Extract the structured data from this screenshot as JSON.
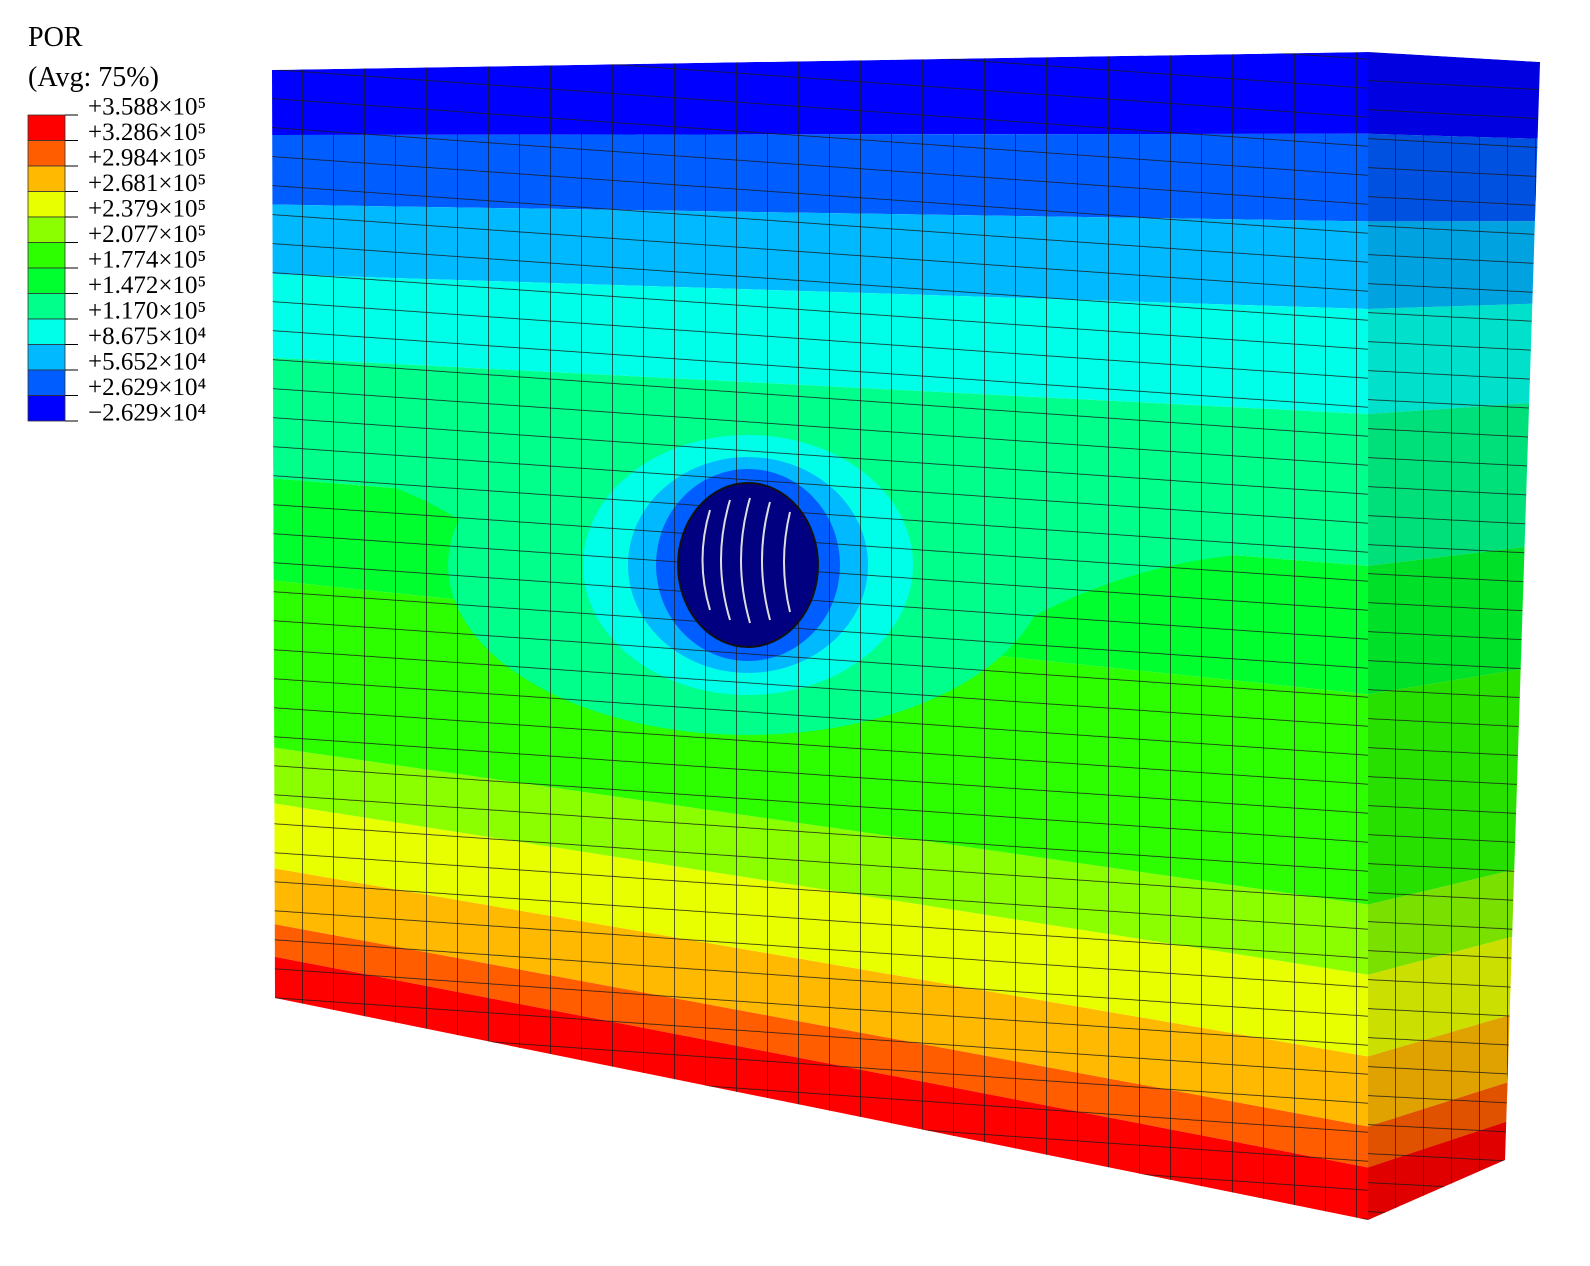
{
  "legend": {
    "title": "POR",
    "subtitle": "(Avg: 75%)",
    "labels": [
      "+3.588×10⁵",
      "+3.286×10⁵",
      "+2.984×10⁵",
      "+2.681×10⁵",
      "+2.379×10⁵",
      "+2.077×10⁵",
      "+1.774×10⁵",
      "+1.472×10⁵",
      "+1.170×10⁵",
      "+8.675×10⁴",
      "+5.652×10⁴",
      "+2.629×10⁴",
      "−2.629×10⁴"
    ],
    "colors": [
      "#ff0000",
      "#ff5d00",
      "#ffb900",
      "#e8ff00",
      "#8bff00",
      "#2eff00",
      "#00ff2e",
      "#00ff8b",
      "#00ffe8",
      "#00b9ff",
      "#005dff",
      "#0000ff"
    ]
  }
}
